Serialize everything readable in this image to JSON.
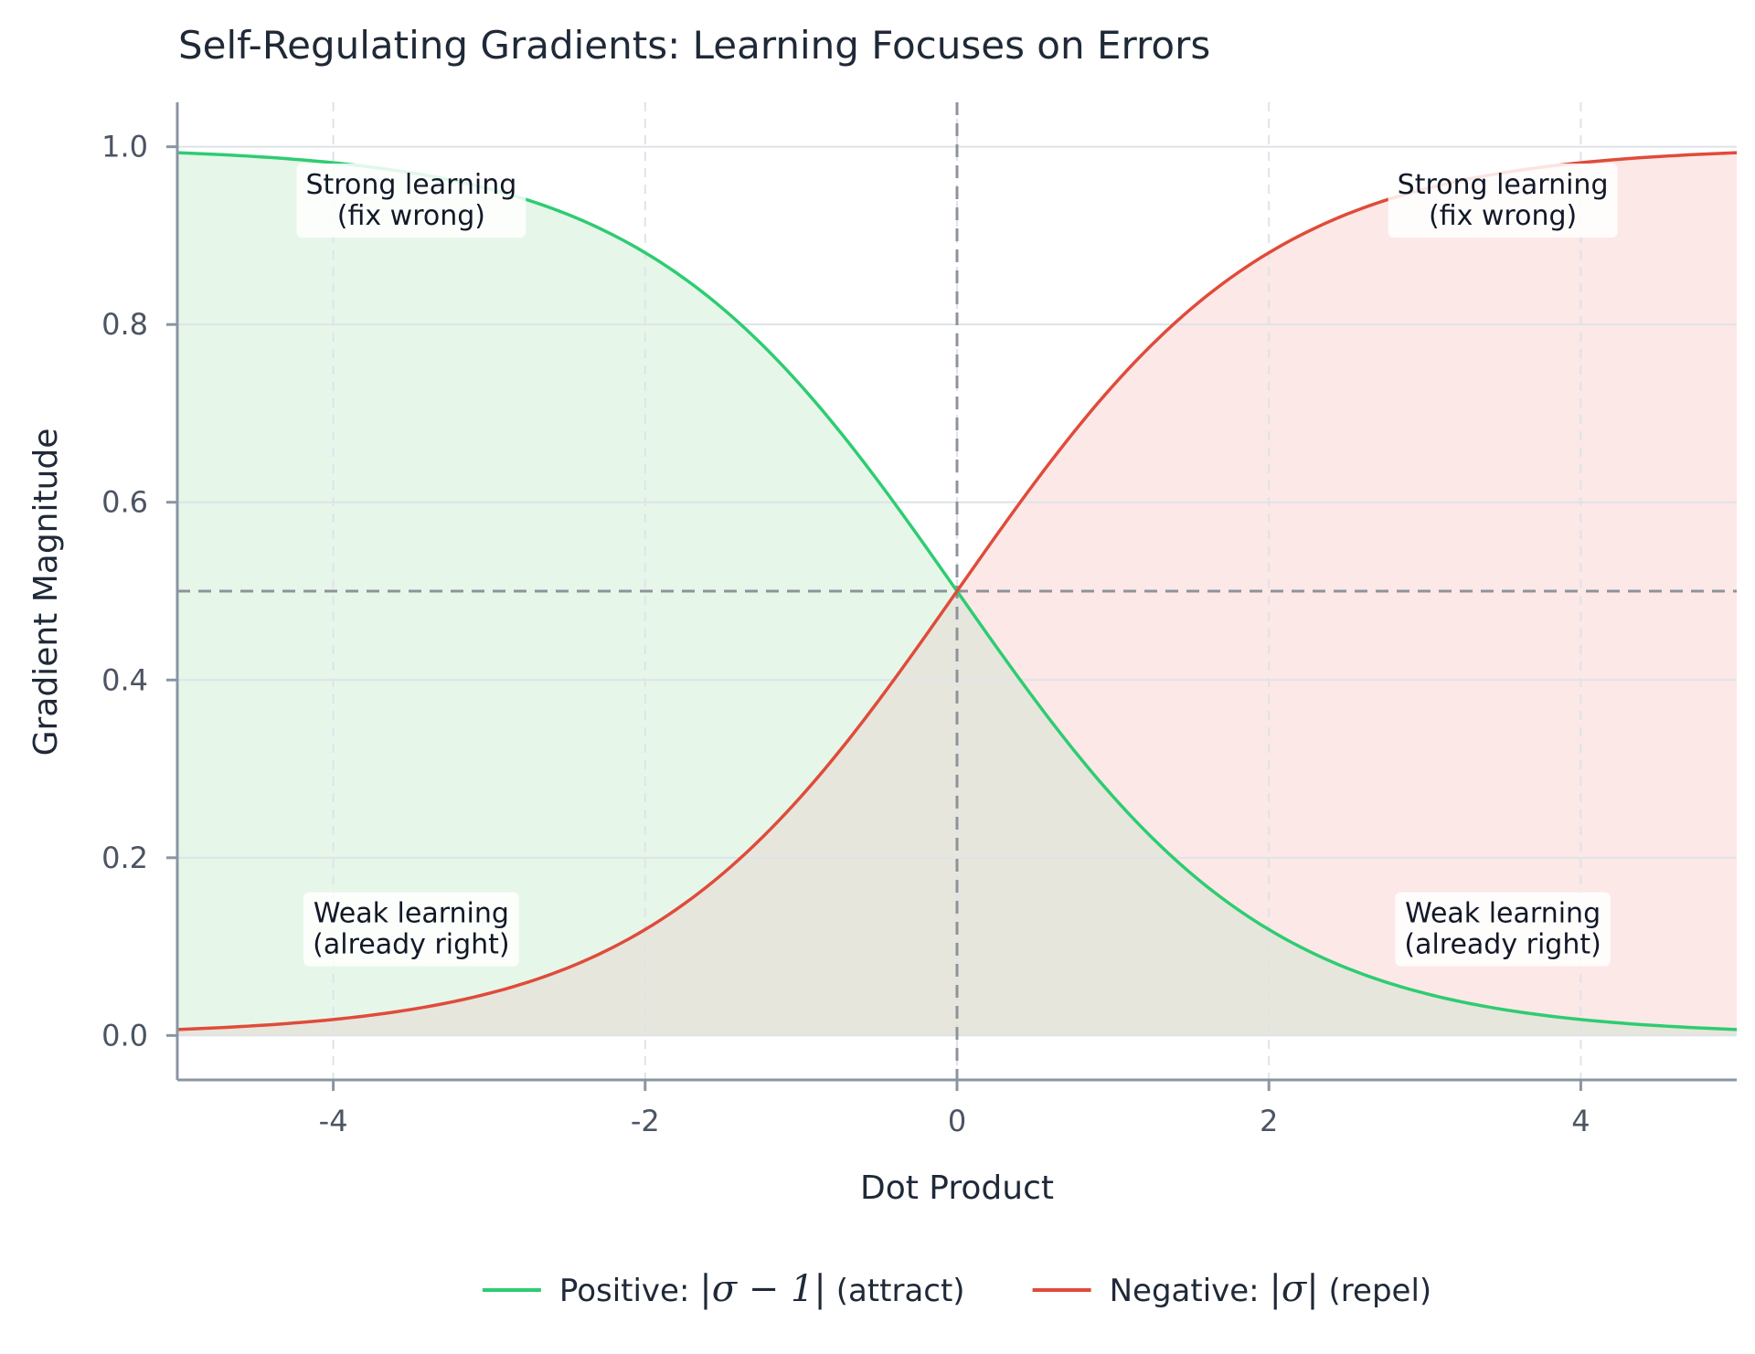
{
  "chart_data": {
    "type": "line",
    "title": "Self-Regulating Gradients: Learning Focuses on Errors",
    "xlabel": "Dot Product",
    "ylabel": "Gradient Magnitude",
    "xlim": [
      -5,
      5
    ],
    "ylim": [
      -0.05,
      1.05
    ],
    "xticks": [
      -4,
      -2,
      0,
      2,
      4
    ],
    "xtick_labels": [
      "-4",
      "-2",
      "0",
      "2",
      "4"
    ],
    "yticks": [
      0.0,
      0.2,
      0.4,
      0.6,
      0.8,
      1.0
    ],
    "ytick_labels": [
      "0.0",
      "0.2",
      "0.4",
      "0.6",
      "0.8",
      "1.0"
    ],
    "grid": true,
    "reference_lines": {
      "x": 0,
      "y": 0.5
    },
    "legend_position": "bottom-center",
    "x": [
      -5,
      -4.5,
      -4,
      -3.5,
      -3,
      -2.5,
      -2,
      -1.5,
      -1,
      -0.5,
      0,
      0.5,
      1,
      1.5,
      2,
      2.5,
      3,
      3.5,
      4,
      4.5,
      5
    ],
    "series": [
      {
        "name": "Positive: |σ − 1| (attract)",
        "legend_prefix": "Positive: ",
        "legend_math": "|σ − 1|",
        "legend_suffix": " (attract)",
        "color": "#2ecc71",
        "fill": "#e6f7ea",
        "values": [
          0.993,
          0.989,
          0.982,
          0.971,
          0.953,
          0.924,
          0.881,
          0.818,
          0.731,
          0.622,
          0.5,
          0.378,
          0.269,
          0.182,
          0.119,
          0.076,
          0.047,
          0.029,
          0.018,
          0.011,
          0.007
        ]
      },
      {
        "name": "Negative: |σ| (repel)",
        "legend_prefix": "Negative: ",
        "legend_math": "|σ|",
        "legend_suffix": " (repel)",
        "color": "#e04b3a",
        "fill": "#fce8e7",
        "values": [
          0.007,
          0.011,
          0.018,
          0.029,
          0.047,
          0.076,
          0.119,
          0.182,
          0.269,
          0.378,
          0.5,
          0.622,
          0.731,
          0.818,
          0.881,
          0.924,
          0.953,
          0.971,
          0.982,
          0.989,
          0.993
        ]
      }
    ],
    "annotations": [
      {
        "x": -3.5,
        "y": 0.94,
        "lines": [
          "Strong learning",
          "(fix wrong)"
        ]
      },
      {
        "x": 3.5,
        "y": 0.94,
        "lines": [
          "Strong learning",
          "(fix wrong)"
        ]
      },
      {
        "x": -3.5,
        "y": 0.12,
        "lines": [
          "Weak learning",
          "(already right)"
        ]
      },
      {
        "x": 3.5,
        "y": 0.12,
        "lines": [
          "Weak learning",
          "(already right)"
        ]
      }
    ]
  },
  "colors": {
    "text": "#1f2937",
    "tick": "#4b5563",
    "axis": "#8a94a3",
    "grid": "#dfe3e8",
    "overlap_fill": "#e6e6dc",
    "reference_line": "#8e939b"
  }
}
